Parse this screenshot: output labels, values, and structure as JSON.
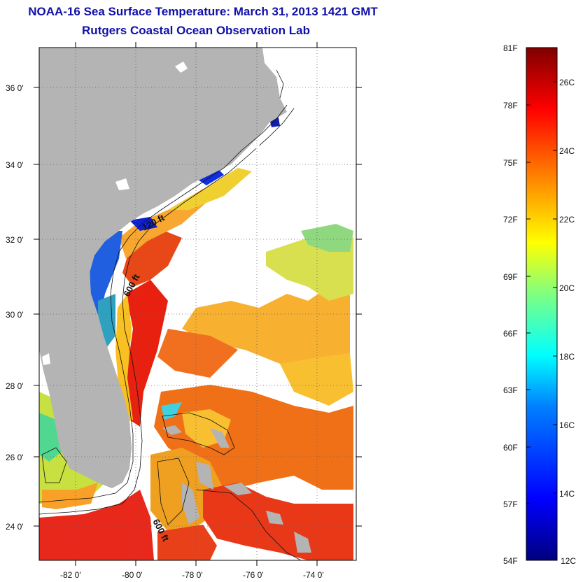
{
  "title": "NOAA-16 Sea Surface Temperature:  March 31, 2013 1421 GMT",
  "subtitle": "Rutgers Coastal Ocean Observation Lab",
  "map": {
    "lat_labels": [
      "36 0'",
      "34 0'",
      "32 0'",
      "30 0'",
      "28 0'",
      "26 0'",
      "24 0'"
    ],
    "lon_labels": [
      "-82 0'",
      "-80 0'",
      "-78 0'",
      "-76 0'",
      "-74 0'"
    ],
    "depth_labels": [
      "120 ft",
      "600 ft",
      "600 ft"
    ]
  },
  "colorbar": {
    "fahrenheit_labels": [
      "81F",
      "78F",
      "75F",
      "72F",
      "69F",
      "66F",
      "63F",
      "60F",
      "57F",
      "54F"
    ],
    "celsius_labels": [
      "26C",
      "24C",
      "22C",
      "20C",
      "18C",
      "16C",
      "14C",
      "12C"
    ],
    "colors": [
      "#7f0000",
      "#ff0000",
      "#ff8000",
      "#ffff00",
      "#80ff80",
      "#00ffff",
      "#0080ff",
      "#0000ff",
      "#00007f"
    ]
  },
  "colors": {
    "land": "#b4b4b4",
    "title": "#1010a8"
  }
}
